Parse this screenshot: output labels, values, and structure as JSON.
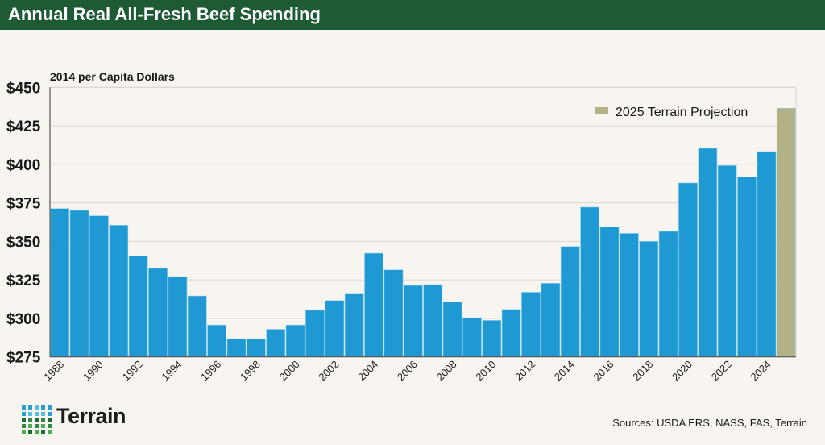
{
  "header": {
    "title": "Annual Real All-Fresh Beef Spending"
  },
  "footer": {
    "sources": "Sources: USDA ERS, NASS, FAS, Terrain",
    "logo_text": "Terrain"
  },
  "chart_data": {
    "type": "bar",
    "title": "Annual Real All-Fresh Beef Spending",
    "ylabel": "2014 per Capita Dollars",
    "xlabel": "",
    "ylim": [
      275,
      450
    ],
    "yticks": [
      275,
      300,
      325,
      350,
      375,
      400,
      425,
      450
    ],
    "ytick_labels": [
      "$275",
      "$300",
      "$325",
      "$350",
      "$375",
      "$400",
      "$425",
      "$450"
    ],
    "grid": true,
    "legend": {
      "placement": "top-right",
      "entries": [
        {
          "name": "2025 Terrain Projection",
          "color": "#b3b286"
        }
      ]
    },
    "categories": [
      1988,
      1989,
      1990,
      1991,
      1992,
      1993,
      1994,
      1995,
      1996,
      1997,
      1998,
      1999,
      2000,
      2001,
      2002,
      2003,
      2004,
      2005,
      2006,
      2007,
      2008,
      2009,
      2010,
      2011,
      2012,
      2013,
      2014,
      2015,
      2016,
      2017,
      2018,
      2019,
      2020,
      2021,
      2022,
      2023,
      2024,
      2025
    ],
    "xtick_labels": [
      "1988",
      "1990",
      "1992",
      "1994",
      "1996",
      "1998",
      "2000",
      "2002",
      "2004",
      "2006",
      "2008",
      "2010",
      "2012",
      "2014",
      "2016",
      "2018",
      "2020",
      "2022",
      "2024"
    ],
    "series": [
      {
        "values": [
          371.3,
          370.1,
          366.6,
          360.5,
          340.6,
          332.5,
          327.1,
          314.6,
          295.7,
          286.8,
          286.5,
          292.9,
          295.7,
          305.3,
          311.6,
          315.8,
          342.3,
          331.5,
          321.4,
          321.9,
          310.7,
          300.4,
          298.7,
          305.8,
          317.0,
          322.8,
          346.7,
          372.2,
          359.4,
          355.2,
          350.0,
          356.5,
          387.9,
          410.4,
          399.2,
          391.7,
          408.3,
          null
        ],
        "color": "#1e99d3"
      },
      {
        "name": "2025 Terrain Projection",
        "values": [
          null,
          null,
          null,
          null,
          null,
          null,
          null,
          null,
          null,
          null,
          null,
          null,
          null,
          null,
          null,
          null,
          null,
          null,
          null,
          null,
          null,
          null,
          null,
          null,
          null,
          null,
          null,
          null,
          null,
          null,
          null,
          null,
          null,
          null,
          null,
          null,
          null,
          436.4
        ],
        "color": "#b3b286"
      }
    ]
  }
}
